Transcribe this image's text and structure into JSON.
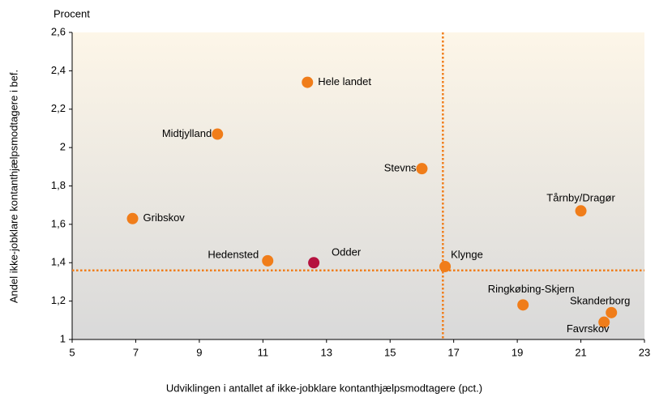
{
  "chart_data": {
    "type": "scatter",
    "y_unit_label": "Procent",
    "ylabel": "Andel ikke-jobklare kontanthjælpsmodtagere i bef.",
    "xlabel": "Udviklingen i antallet af ikke-jobklare kontanthjælpsmodtagere (pct.)",
    "points": [
      {
        "label": "Hele landet",
        "x": 12.4,
        "y": 2.34,
        "color": "#f07d1a"
      },
      {
        "label": "Midtjylland",
        "x": 9.57,
        "y": 2.07,
        "color": "#f07d1a"
      },
      {
        "label": "Stevns",
        "x": 16.0,
        "y": 1.89,
        "color": "#f07d1a"
      },
      {
        "label": "Tårnby/Dragør",
        "x": 21.0,
        "y": 1.67,
        "color": "#f07d1a"
      },
      {
        "label": "Gribskov",
        "x": 6.9,
        "y": 1.63,
        "color": "#f07d1a"
      },
      {
        "label": "Hedensted",
        "x": 11.15,
        "y": 1.41,
        "color": "#f07d1a"
      },
      {
        "label": "Odder",
        "x": 12.6,
        "y": 1.4,
        "color": "#b5123f"
      },
      {
        "label": "Klynge",
        "x": 16.73,
        "y": 1.38,
        "color": "#f07d1a"
      },
      {
        "label": "Ringkøbing-Skjern",
        "x": 19.18,
        "y": 1.18,
        "color": "#f07d1a"
      },
      {
        "label": "Skanderborg",
        "x": 21.96,
        "y": 1.14,
        "color": "#f07d1a"
      },
      {
        "label": "Favrskov",
        "x": 21.73,
        "y": 1.09,
        "color": "#f07d1a"
      }
    ],
    "reference_lines": {
      "x": 16.66,
      "y": 1.36,
      "color": "#f07d1a"
    },
    "xlim": [
      5,
      23
    ],
    "xticks": [
      5,
      7,
      9,
      11,
      13,
      15,
      17,
      19,
      21,
      23
    ],
    "ylim": [
      1,
      2.6
    ],
    "yticks": [
      1,
      {
        "value": 1.2,
        "label": "1,2"
      },
      {
        "value": 1.4,
        "label": "1,4"
      },
      {
        "value": 1.6,
        "label": "1,6"
      },
      {
        "value": 1.8,
        "label": "1,8"
      },
      2,
      {
        "value": 2.2,
        "label": "2,2"
      },
      {
        "value": 2.4,
        "label": "2,4"
      },
      {
        "value": 2.6,
        "label": "2,6"
      }
    ],
    "grid": false
  }
}
